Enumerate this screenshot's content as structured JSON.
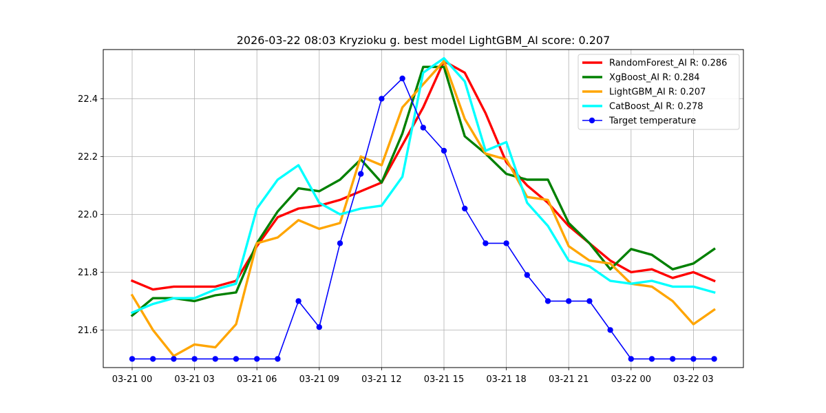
{
  "chart_data": {
    "type": "line",
    "title": "2026-03-22 08:03 Kryzioku g. best model LightGBM_AI score: 0.207",
    "xlabel": "",
    "ylabel": "",
    "grid": true,
    "legend_position": "top-right",
    "x_tick_labels": [
      "03-21 00",
      "03-21 03",
      "03-21 06",
      "03-21 09",
      "03-21 12",
      "03-21 15",
      "03-21 18",
      "03-21 21",
      "03-22 00",
      "03-22 03"
    ],
    "y_tick_labels": [
      "21.6",
      "21.8",
      "22.0",
      "22.2",
      "22.4"
    ],
    "y_ticks": [
      21.6,
      21.8,
      22.0,
      22.2,
      22.4
    ],
    "ylim": [
      21.47,
      22.57
    ],
    "x_hours_start": "03-21 00",
    "series": [
      {
        "name": "RandomForest_AI R: 0.286",
        "color": "#ff0000",
        "marker": false,
        "values": [
          21.77,
          21.74,
          21.75,
          21.75,
          21.75,
          21.77,
          21.89,
          21.99,
          22.02,
          22.03,
          22.05,
          22.08,
          22.11,
          22.24,
          22.37,
          22.53,
          22.49,
          22.35,
          22.18,
          22.1,
          22.04,
          21.96,
          21.9,
          21.84,
          21.8,
          21.81,
          21.78,
          21.8,
          21.77
        ]
      },
      {
        "name": "XgBoost_AI R: 0.284",
        "color": "#008000",
        "marker": false,
        "values": [
          21.65,
          21.71,
          21.71,
          21.7,
          21.72,
          21.73,
          21.9,
          22.01,
          22.09,
          22.08,
          22.12,
          22.19,
          22.11,
          22.28,
          22.51,
          22.51,
          22.27,
          22.21,
          22.14,
          22.12,
          22.12,
          21.97,
          21.9,
          21.81,
          21.88,
          21.86,
          21.81,
          21.83,
          21.88
        ]
      },
      {
        "name": "LightGBM_AI R: 0.207",
        "color": "#ffa500",
        "marker": false,
        "values": [
          21.72,
          21.6,
          21.51,
          21.55,
          21.54,
          21.62,
          21.9,
          21.92,
          21.98,
          21.95,
          21.97,
          22.2,
          22.17,
          22.37,
          22.45,
          22.53,
          22.33,
          22.21,
          22.19,
          22.06,
          22.05,
          21.89,
          21.84,
          21.83,
          21.76,
          21.75,
          21.7,
          21.62,
          21.67
        ]
      },
      {
        "name": "CatBoost_AI R: 0.278",
        "color": "#00ffff",
        "marker": false,
        "values": [
          21.66,
          21.69,
          21.71,
          21.71,
          21.74,
          21.76,
          22.02,
          22.12,
          22.17,
          22.04,
          22.0,
          22.02,
          22.03,
          22.13,
          22.49,
          22.54,
          22.46,
          22.22,
          22.25,
          22.04,
          21.96,
          21.84,
          21.82,
          21.77,
          21.76,
          21.77,
          21.75,
          21.75,
          21.73
        ]
      },
      {
        "name": "Target temperature",
        "color": "#0000ff",
        "marker": true,
        "values": [
          21.5,
          21.5,
          21.5,
          21.5,
          21.5,
          21.5,
          21.5,
          21.5,
          21.7,
          21.61,
          21.9,
          22.14,
          22.4,
          22.47,
          22.3,
          22.22,
          22.02,
          21.9,
          21.9,
          21.79,
          21.7,
          21.7,
          21.7,
          21.6,
          21.5,
          21.5,
          21.5,
          21.5,
          21.5
        ]
      }
    ]
  }
}
